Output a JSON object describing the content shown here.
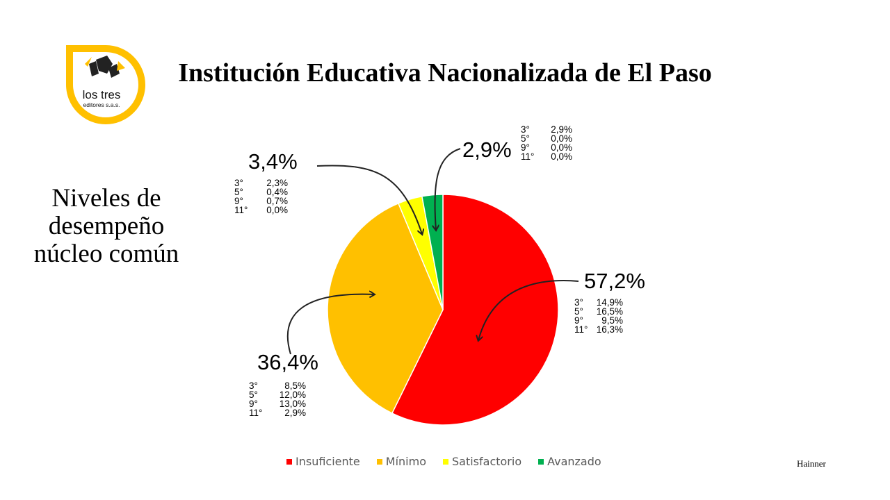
{
  "logo": {
    "line1": "los tres",
    "line2": "editores s.a.s.",
    "ring_color": "#ffc000"
  },
  "title": "Institución Educativa Nacionalizada de El Paso",
  "subtitle": "Niveles de desempeño núcleo común",
  "footer": "Hainner",
  "chart_data": {
    "type": "pie",
    "title": "",
    "series": [
      {
        "name": "Insuficiente",
        "value": 57.2,
        "label": "57,2%",
        "color": "#ff0000",
        "breakdown": [
          [
            "3°",
            "14,9%"
          ],
          [
            "5°",
            "16,5%"
          ],
          [
            "9°",
            "9,5%"
          ],
          [
            "11°",
            "16,3%"
          ]
        ]
      },
      {
        "name": "Mínimo",
        "value": 36.4,
        "label": "36,4%",
        "color": "#ffc000",
        "breakdown": [
          [
            "3°",
            "8,5%"
          ],
          [
            "5°",
            "12,0%"
          ],
          [
            "9°",
            "13,0%"
          ],
          [
            "11°",
            "2,9%"
          ]
        ]
      },
      {
        "name": "Satisfactorio",
        "value": 3.4,
        "label": "3,4%",
        "color": "#ffff00",
        "breakdown": [
          [
            "3°",
            "2,3%"
          ],
          [
            "5°",
            "0,4%"
          ],
          [
            "9°",
            "0,7%"
          ],
          [
            "11°",
            "0,0%"
          ]
        ]
      },
      {
        "name": "Avanzado",
        "value": 2.9,
        "label": "2,9%",
        "color": "#00b050",
        "breakdown": [
          [
            "3°",
            "2,9%"
          ],
          [
            "5°",
            "0,0%"
          ],
          [
            "9°",
            "0,0%"
          ],
          [
            "11°",
            "0,0%"
          ]
        ]
      }
    ],
    "legend_position": "bottom"
  }
}
